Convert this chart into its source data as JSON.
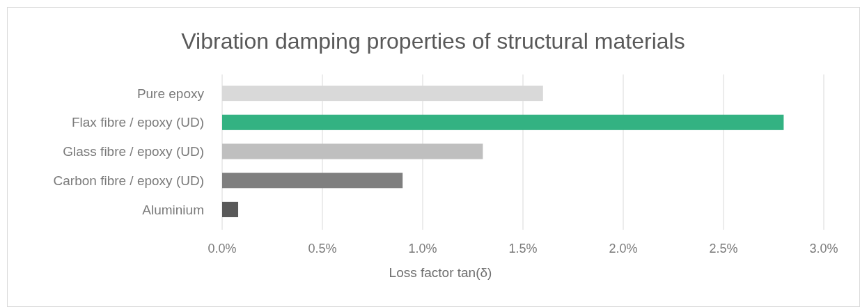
{
  "chart_data": {
    "type": "bar",
    "orientation": "horizontal",
    "title": "Vibration damping properties of structural materials",
    "xlabel": "Loss factor tan(δ)",
    "categories": [
      "Pure epoxy",
      "Flax fibre / epoxy (UD)",
      "Glass fibre / epoxy (UD)",
      "Carbon fibre / epoxy (UD)",
      "Aluminium"
    ],
    "values": [
      1.6,
      2.8,
      1.3,
      0.9,
      0.08
    ],
    "colors": [
      "#d9d9d9",
      "#33b282",
      "#bfbfbf",
      "#7f7f7f",
      "#595959"
    ],
    "xlim": [
      0,
      3.0
    ],
    "xticks": [
      {
        "value": 0,
        "label": "0.0%"
      },
      {
        "value": 0.5,
        "label": "0.5%"
      },
      {
        "value": 1.0,
        "label": "1.0%"
      },
      {
        "value": 1.5,
        "label": "1.5%"
      },
      {
        "value": 2.0,
        "label": "2.0%"
      },
      {
        "value": 2.5,
        "label": "2.5%"
      },
      {
        "value": 3.0,
        "label": "3.0%"
      }
    ],
    "grid": "x"
  }
}
